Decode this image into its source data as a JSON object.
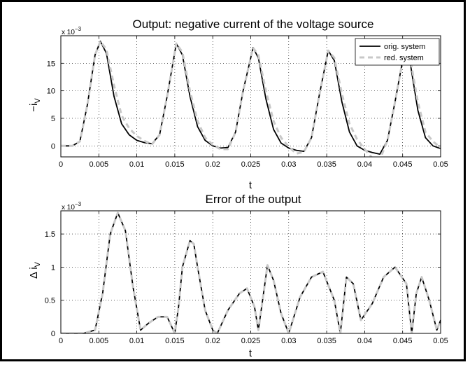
{
  "chart_data": [
    {
      "type": "line",
      "title": "Output: negative current of the voltage source",
      "xlabel": "t",
      "ylabel": "−i",
      "ylabel_sub": "V",
      "exponent_label": "x 10",
      "exponent_power": "−3",
      "xlim": [
        0,
        0.05
      ],
      "ylim": [
        -2,
        20
      ],
      "xticks": [
        "0",
        "0.005",
        "0.01",
        "0.015",
        "0.02",
        "0.025",
        "0.03",
        "0.035",
        "0.04",
        "0.045",
        "0.05"
      ],
      "yticks": [
        "0",
        "5",
        "10",
        "15"
      ],
      "grid": true,
      "legend_position": "top-right",
      "series": [
        {
          "name": "orig. system",
          "color": "#000000",
          "style": "solid",
          "x": [
            0,
            0.0015,
            0.0025,
            0.0035,
            0.0045,
            0.0052,
            0.006,
            0.007,
            0.008,
            0.009,
            0.01,
            0.011,
            0.012,
            0.013,
            0.014,
            0.0152,
            0.016,
            0.017,
            0.018,
            0.019,
            0.02,
            0.021,
            0.022,
            0.023,
            0.024,
            0.0253,
            0.026,
            0.027,
            0.028,
            0.029,
            0.03,
            0.031,
            0.032,
            0.033,
            0.034,
            0.0352,
            0.036,
            0.037,
            0.038,
            0.039,
            0.04,
            0.041,
            0.042,
            0.043,
            0.044,
            0.0452,
            0.046,
            0.047,
            0.048,
            0.049,
            0.05
          ],
          "y": [
            0,
            0,
            0.8,
            7.5,
            16.5,
            19.0,
            16.8,
            9.0,
            4.0,
            2.0,
            1.0,
            0.6,
            0.4,
            2.0,
            9.0,
            18.6,
            16.5,
            9.0,
            3.5,
            1.0,
            0.0,
            -0.4,
            -0.3,
            2.5,
            10.0,
            17.8,
            16.0,
            8.5,
            3.0,
            0.5,
            -0.4,
            -0.8,
            -1.0,
            1.5,
            9.0,
            17.3,
            15.5,
            8.0,
            2.5,
            0.0,
            -0.8,
            -1.2,
            -1.5,
            1.0,
            8.0,
            17.0,
            15.0,
            6.5,
            1.5,
            0.0,
            -0.5
          ]
        },
        {
          "name": "red. system",
          "color": "#c8c8c8",
          "style": "dashed",
          "x": [
            0,
            0.0015,
            0.0025,
            0.0035,
            0.0045,
            0.0052,
            0.006,
            0.007,
            0.008,
            0.009,
            0.01,
            0.011,
            0.012,
            0.013,
            0.014,
            0.0152,
            0.016,
            0.017,
            0.018,
            0.019,
            0.02,
            0.021,
            0.022,
            0.023,
            0.024,
            0.0253,
            0.026,
            0.027,
            0.028,
            0.029,
            0.03,
            0.031,
            0.032,
            0.033,
            0.034,
            0.0352,
            0.036,
            0.037,
            0.038,
            0.039,
            0.04,
            0.041,
            0.042,
            0.043,
            0.044,
            0.0452,
            0.046,
            0.047,
            0.048,
            0.049,
            0.05
          ],
          "y": [
            0,
            0,
            0.8,
            7.5,
            16.5,
            19.0,
            17.5,
            11.0,
            5.5,
            3.2,
            1.8,
            0.9,
            0.3,
            2.0,
            9.0,
            18.6,
            17.0,
            10.0,
            4.5,
            1.5,
            0.2,
            -0.6,
            -0.6,
            2.5,
            10.0,
            17.8,
            16.5,
            10.0,
            4.5,
            1.5,
            -0.2,
            -1.4,
            -1.1,
            1.5,
            9.0,
            17.3,
            16.0,
            9.5,
            4.0,
            1.2,
            -0.6,
            -2.2,
            -2.5,
            1.0,
            8.0,
            17.0,
            15.8,
            8.0,
            2.5,
            0.8,
            -0.3
          ]
        }
      ]
    },
    {
      "type": "line",
      "title": "Error of the output",
      "xlabel": "t",
      "ylabel": "Δ i",
      "ylabel_sub": "V",
      "exponent_label": "x 10",
      "exponent_power": "−3",
      "xlim": [
        0,
        0.05
      ],
      "ylim": [
        0,
        1.85
      ],
      "xticks": [
        "0",
        "0.005",
        "0.01",
        "0.015",
        "0.02",
        "0.025",
        "0.03",
        "0.035",
        "0.04",
        "0.045",
        "0.05"
      ],
      "yticks": [
        "0",
        "0.5",
        "1",
        "1.5"
      ],
      "grid": true,
      "series": [
        {
          "color": "#000000",
          "style": "solid",
          "x": [
            0,
            0.003,
            0.0045,
            0.0055,
            0.0065,
            0.0075,
            0.0085,
            0.0095,
            0.0105,
            0.0115,
            0.0128,
            0.014,
            0.015,
            0.0155,
            0.016,
            0.017,
            0.0175,
            0.018,
            0.019,
            0.02,
            0.0206,
            0.022,
            0.0235,
            0.0245,
            0.0255,
            0.026,
            0.0265,
            0.0272,
            0.028,
            0.029,
            0.03,
            0.0315,
            0.033,
            0.0345,
            0.036,
            0.0368,
            0.0376,
            0.0385,
            0.0395,
            0.041,
            0.0425,
            0.044,
            0.0455,
            0.0462,
            0.0468,
            0.0475,
            0.0485,
            0.0495,
            0.05
          ],
          "y": [
            0,
            0,
            0.05,
            0.6,
            1.5,
            1.82,
            1.55,
            0.7,
            0.05,
            0.15,
            0.25,
            0.25,
            0.0,
            0.4,
            1.0,
            1.4,
            1.35,
            1.0,
            0.35,
            0.05,
            0.0,
            0.35,
            0.6,
            0.68,
            0.4,
            0.05,
            0.45,
            1.03,
            0.8,
            0.3,
            0.0,
            0.55,
            0.85,
            0.93,
            0.5,
            0.0,
            0.85,
            0.75,
            0.2,
            0.45,
            0.85,
            1.0,
            0.75,
            0.0,
            0.6,
            0.85,
            0.5,
            0.05,
            0.2
          ]
        },
        {
          "color": "#c8c8c8",
          "style": "dashed",
          "x": [
            0,
            0.003,
            0.0045,
            0.0055,
            0.0065,
            0.0075,
            0.0085,
            0.0095,
            0.0105,
            0.0115,
            0.0128,
            0.014,
            0.015,
            0.0155,
            0.016,
            0.017,
            0.0175,
            0.018,
            0.019,
            0.02,
            0.0206,
            0.022,
            0.0235,
            0.0245,
            0.0255,
            0.026,
            0.0265,
            0.0272,
            0.028,
            0.029,
            0.03,
            0.0315,
            0.033,
            0.0345,
            0.036,
            0.0368,
            0.0376,
            0.0385,
            0.0395,
            0.041,
            0.0425,
            0.044,
            0.0455,
            0.0462,
            0.0468,
            0.0475,
            0.0485,
            0.0495,
            0.05
          ],
          "y": [
            0,
            0,
            0.05,
            0.6,
            1.5,
            1.82,
            1.55,
            0.7,
            0.05,
            0.15,
            0.25,
            0.25,
            0.0,
            0.4,
            1.0,
            1.4,
            1.35,
            1.0,
            0.35,
            0.05,
            0.0,
            0.35,
            0.6,
            0.68,
            0.4,
            0.05,
            0.45,
            1.03,
            0.8,
            0.3,
            0.0,
            0.55,
            0.85,
            0.93,
            0.5,
            0.0,
            0.85,
            0.75,
            0.2,
            0.45,
            0.85,
            1.0,
            0.75,
            0.0,
            0.6,
            0.85,
            0.5,
            0.05,
            0.2
          ]
        }
      ]
    }
  ]
}
